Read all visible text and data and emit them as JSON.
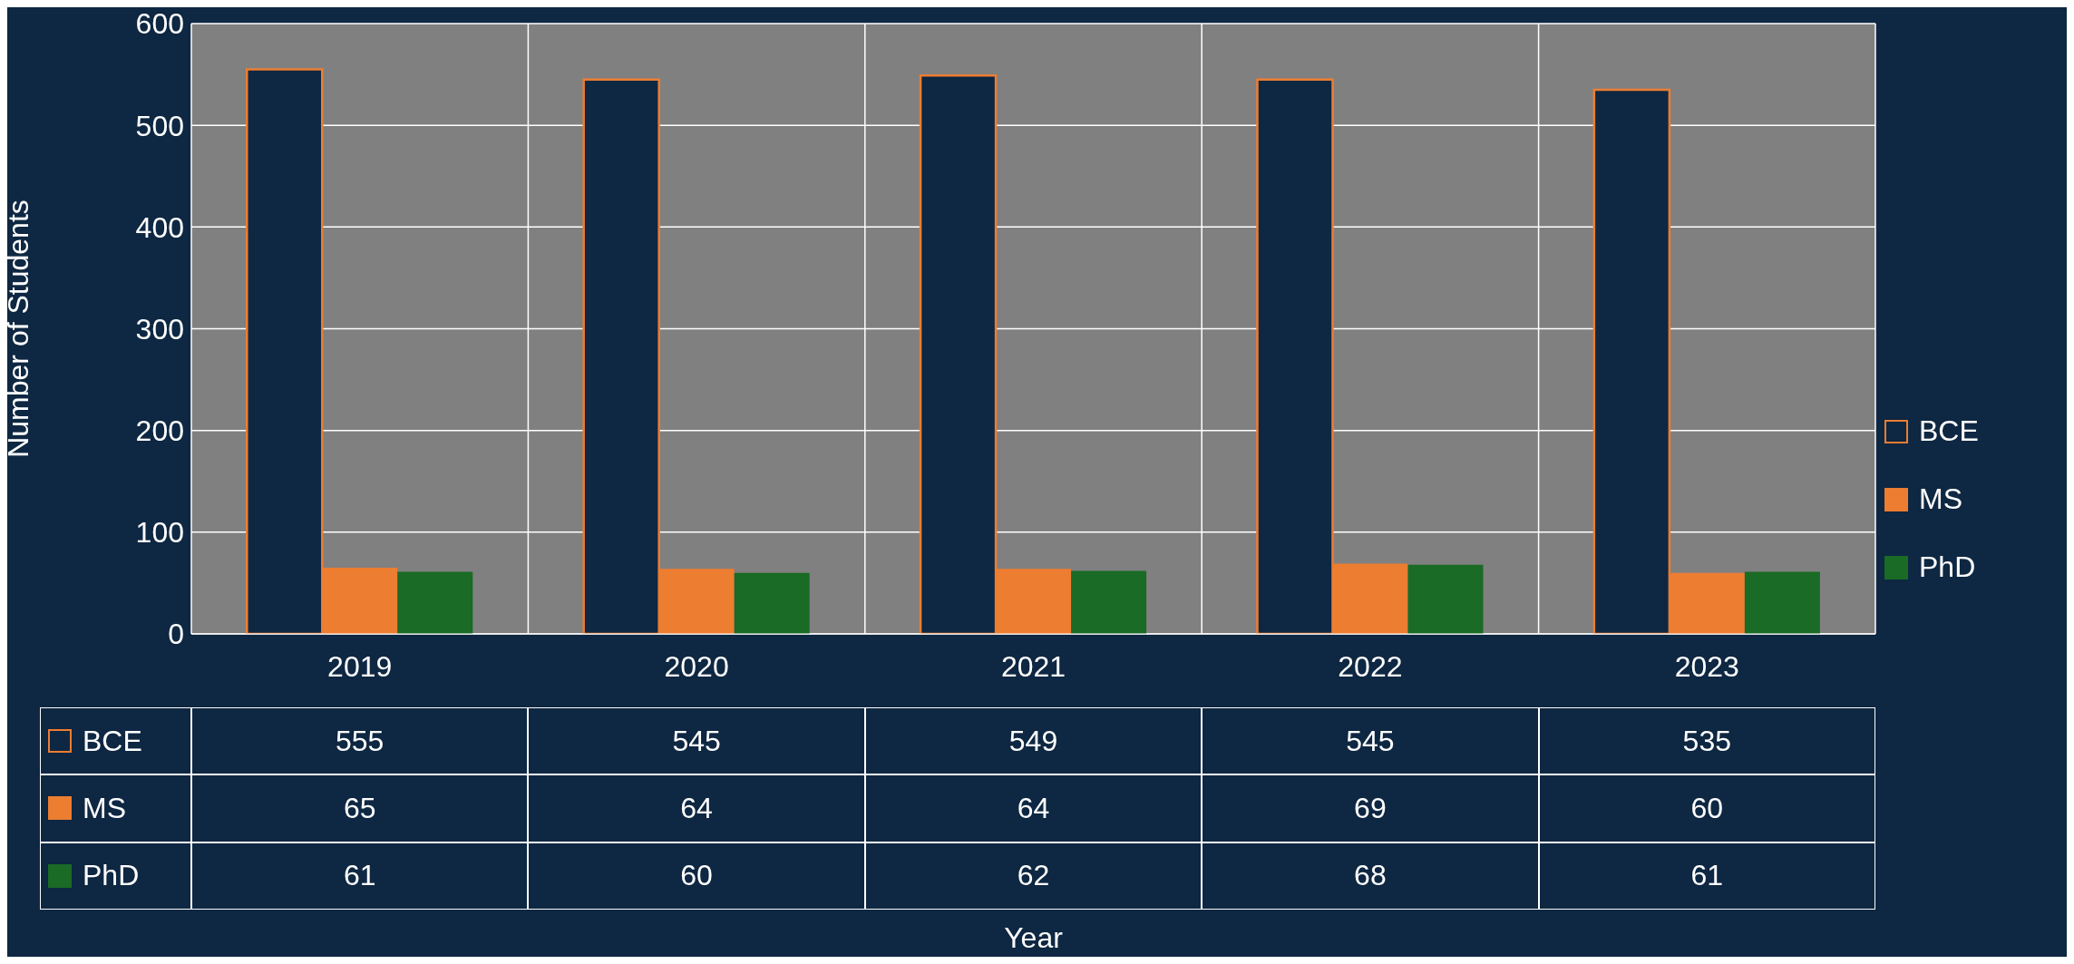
{
  "chart_data": {
    "type": "bar",
    "annotations": [
      "Year"
    ],
    "ylabel": "Number of Students",
    "categories": [
      "2019",
      "2020",
      "2021",
      "2022",
      "2023"
    ],
    "series": [
      {
        "name": "BCE",
        "color": "#0e2742",
        "values": [
          555,
          545,
          549,
          545,
          535
        ]
      },
      {
        "name": "MS",
        "color": "#ed7d31",
        "values": [
          65,
          64,
          64,
          69,
          60
        ]
      },
      {
        "name": "PhD",
        "color": "#1a6b25",
        "values": [
          61,
          60,
          62,
          68,
          61
        ]
      }
    ],
    "ylim": [
      0,
      600
    ],
    "yticks": [
      0,
      100,
      200,
      300,
      400,
      500,
      600
    ],
    "grid": true,
    "legend": "right",
    "data_labels": true
  }
}
